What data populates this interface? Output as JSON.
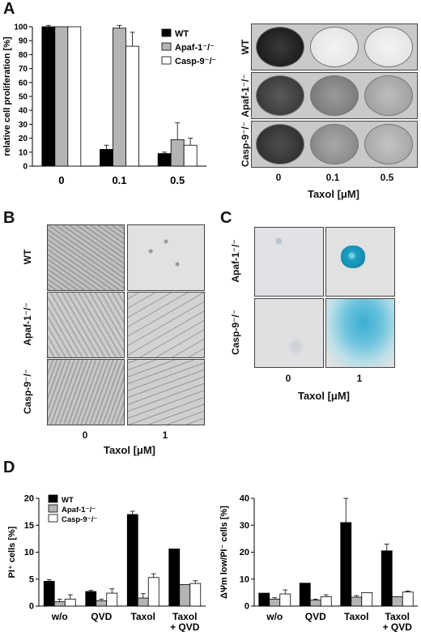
{
  "panels": {
    "A": {
      "label": "A",
      "row_labels": [
        "WT",
        "Apaf-1⁻/⁻",
        "Casp-9⁻/⁻"
      ],
      "dose_ticks": [
        "0",
        "0.1",
        "0.5"
      ],
      "xlabel": "Taxol [μM]"
    },
    "B": {
      "label": "B",
      "row_labels": [
        "WT",
        "Apaf-1⁻/⁻",
        "Casp-9⁻/⁻"
      ],
      "dose_ticks": [
        "0",
        "1"
      ],
      "xlabel": "Taxol [μM]"
    },
    "C": {
      "label": "C",
      "row_labels": [
        "Apaf-1⁻/⁻",
        "Casp-9⁻/⁻"
      ],
      "dose_ticks": [
        "0",
        "1"
      ],
      "xlabel": "Taxol [μM]"
    },
    "D": {
      "label": "D"
    }
  },
  "colors": {
    "WT": "#000000",
    "Apaf": "#b4b4b4",
    "Casp": "#ffffff",
    "stain": "#2aa6c8"
  },
  "chart_data": [
    {
      "id": "A",
      "type": "bar",
      "categories": [
        "0",
        "0.1",
        "0.5"
      ],
      "series": [
        {
          "name": "WT",
          "values": [
            100,
            12,
            9
          ],
          "errors": [
            1,
            3,
            1
          ]
        },
        {
          "name": "Apaf-1⁻/⁻",
          "values": [
            100,
            99,
            19
          ],
          "errors": [
            0,
            2,
            12
          ]
        },
        {
          "name": "Casp-9⁻/⁻",
          "values": [
            100,
            86,
            15
          ],
          "errors": [
            0,
            10,
            5
          ]
        }
      ],
      "ylabel": "relative cell proliferation [%]",
      "ylim": [
        0,
        100
      ],
      "yticks": [
        0,
        10,
        20,
        30,
        40,
        50,
        60,
        70,
        80,
        90,
        100
      ],
      "legend": "top-right"
    },
    {
      "id": "D1",
      "type": "bar",
      "categories": [
        "w/o",
        "QVD",
        "Taxol",
        "Taxol\n+ QVD"
      ],
      "series": [
        {
          "name": "WT",
          "values": [
            4.6,
            2.7,
            17.0,
            10.6
          ],
          "errors": [
            0.3,
            0.2,
            0.6,
            0
          ]
        },
        {
          "name": "Apaf-1⁻/⁻",
          "values": [
            0.8,
            1.0,
            1.5,
            4.0
          ],
          "errors": [
            0.5,
            0.3,
            0.8,
            0
          ]
        },
        {
          "name": "Casp-9⁻/⁻",
          "values": [
            1.3,
            2.4,
            5.3,
            4.2
          ],
          "errors": [
            0.8,
            0.8,
            0.7,
            0.5
          ]
        }
      ],
      "ylabel": "PI⁺ cells [%]",
      "ylim": [
        0,
        20
      ],
      "yticks": [
        0,
        5,
        10,
        15,
        20
      ],
      "legend": "top-left"
    },
    {
      "id": "D2",
      "type": "bar",
      "categories": [
        "w/o",
        "QVD",
        "Taxol",
        "Taxol\n+ QVD"
      ],
      "series": [
        {
          "name": "WT",
          "values": [
            4.8,
            8.5,
            31.0,
            20.5
          ],
          "errors": [
            0,
            0,
            9,
            2.5
          ]
        },
        {
          "name": "Apaf-1⁻/⁻",
          "values": [
            2.6,
            2.2,
            3.3,
            3.5
          ],
          "errors": [
            0.5,
            0.4,
            0.6,
            0
          ]
        },
        {
          "name": "Casp-9⁻/⁻",
          "values": [
            4.5,
            3.5,
            5.0,
            5.2
          ],
          "errors": [
            1.5,
            0.7,
            0,
            0.4
          ]
        }
      ],
      "ylabel": "ΔΨm low/PI⁻ cells [%]",
      "ylim": [
        0,
        40
      ],
      "yticks": [
        0,
        10,
        20,
        30,
        40
      ],
      "legend": "none"
    }
  ]
}
